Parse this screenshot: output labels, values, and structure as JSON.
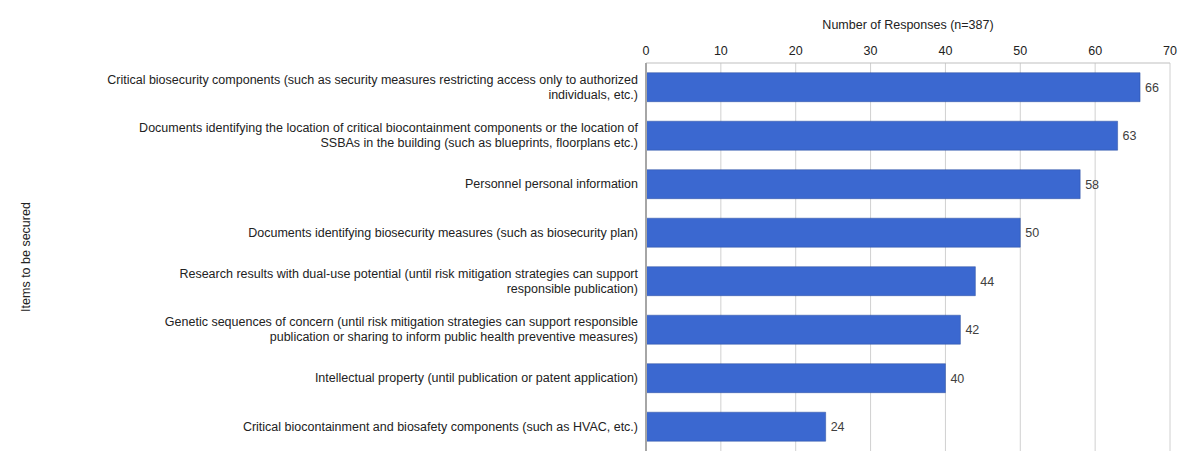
{
  "chart_data": {
    "type": "bar",
    "orientation": "horizontal",
    "xlabel": "Number of Responses (n=387)",
    "ylabel": "Items to be secured",
    "categories": [
      "Critical biosecurity components (such as security measures restricting access only to authorized individuals, etc.)",
      "Documents identifying the location of critical biocontainment components or the location of SSBAs in the building (such as blueprints, floorplans etc.)",
      "Personnel personal information",
      "Documents identifying biosecurity measures (such as biosecurity plan)",
      "Research results with dual-use potential (until risk mitigation strategies can support responsible publication)",
      "Genetic sequences of concern (until risk mitigation strategies can support responsible publication or sharing to inform public health preventive measures)",
      "Intellectual property (until publication or patent application)",
      "Critical biocontainment and biosafety components (such as HVAC, etc.)"
    ],
    "values": [
      66,
      63,
      58,
      50,
      44,
      42,
      40,
      24
    ],
    "color": "#3b68d0",
    "xlim": [
      0,
      70
    ],
    "xticks": [
      0,
      10,
      20,
      30,
      40,
      50,
      60,
      70
    ],
    "grid": true,
    "data_labels": true
  }
}
